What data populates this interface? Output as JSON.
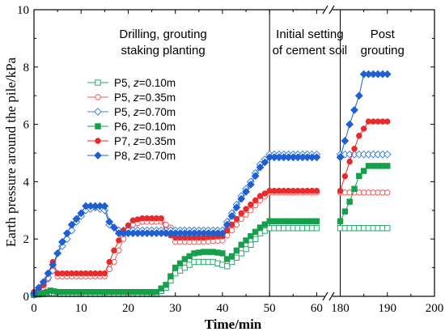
{
  "chart_data": {
    "type": "line",
    "xlabel": "Time/min",
    "ylabel": "Earth pressure around the pile/kPa",
    "ylim": [
      0,
      10
    ],
    "y_ticks": [
      "0",
      "2",
      "4",
      "6",
      "8",
      "10"
    ],
    "x_ticks": [
      "0",
      "10",
      "20",
      "30",
      "40",
      "50",
      "60",
      "180",
      "190",
      "200"
    ],
    "x_axis_break": [
      60,
      180
    ],
    "phase_dividers": [
      50,
      180
    ],
    "phase_labels": [
      {
        "lines": [
          "Drilling, grouting",
          "staking planting"
        ]
      },
      {
        "lines": [
          "Initial setting",
          "of cement soil"
        ]
      },
      {
        "lines": [
          "Post",
          "grouting"
        ]
      }
    ],
    "legend_position": "left",
    "series": [
      {
        "name": "P5, z=0.10m",
        "color": "#2aa56a",
        "marker": "square-open",
        "legend": {
          "var": "z",
          "rest": "=0.10m",
          "prefix": "P5, "
        },
        "points": [
          [
            0,
            0.05
          ],
          [
            2,
            0.08
          ],
          [
            3.5,
            0.12
          ],
          [
            5,
            0.1
          ],
          [
            5.5,
            0.08
          ],
          [
            10,
            0.08
          ],
          [
            15,
            0.08
          ],
          [
            20,
            0.08
          ],
          [
            26,
            0.08
          ],
          [
            28,
            0.3
          ],
          [
            30,
            0.8
          ],
          [
            32,
            1.0
          ],
          [
            34,
            1.2
          ],
          [
            36,
            1.2
          ],
          [
            38,
            1.2
          ],
          [
            40,
            1.1
          ],
          [
            41,
            1.05
          ],
          [
            42,
            1.2
          ],
          [
            44,
            1.5
          ],
          [
            46,
            1.8
          ],
          [
            48,
            2.2
          ],
          [
            50,
            2.38
          ],
          [
            52,
            2.38
          ],
          [
            60,
            2.38
          ],
          [
            180,
            2.38
          ],
          [
            190,
            2.38
          ]
        ]
      },
      {
        "name": "P5, z=0.35m",
        "color": "#f05a5a",
        "marker": "circle-open",
        "legend": {
          "var": "z",
          "rest": "=0.35m",
          "prefix": "P5, "
        },
        "points": [
          [
            0,
            0.1
          ],
          [
            2,
            0.3
          ],
          [
            3,
            0.6
          ],
          [
            4,
            0.9
          ],
          [
            5,
            0.7
          ],
          [
            6,
            0.7
          ],
          [
            10,
            0.7
          ],
          [
            15,
            0.7
          ],
          [
            17,
            1.2
          ],
          [
            19,
            2.0
          ],
          [
            21,
            2.5
          ],
          [
            23,
            2.6
          ],
          [
            25,
            2.6
          ],
          [
            27,
            2.6
          ],
          [
            29,
            2.4
          ],
          [
            30,
            1.9
          ],
          [
            32,
            1.9
          ],
          [
            36,
            1.9
          ],
          [
            40,
            1.95
          ],
          [
            42,
            2.3
          ],
          [
            44,
            2.7
          ],
          [
            46,
            3.0
          ],
          [
            48,
            3.35
          ],
          [
            50,
            3.62
          ],
          [
            52,
            3.62
          ],
          [
            60,
            3.62
          ],
          [
            180,
            3.62
          ],
          [
            190,
            3.62
          ]
        ]
      },
      {
        "name": "P5, z=0.70m",
        "color": "#3f7fe0",
        "marker": "diamond-open",
        "legend": {
          "var": "z",
          "rest": "=0.70m",
          "prefix": "P5, "
        },
        "points": [
          [
            0,
            0.05
          ],
          [
            2,
            0.4
          ],
          [
            4,
            0.9
          ],
          [
            5,
            1.5
          ],
          [
            7,
            2.0
          ],
          [
            9,
            2.6
          ],
          [
            11,
            3.0
          ],
          [
            13,
            3.1
          ],
          [
            15,
            3.0
          ],
          [
            16,
            2.5
          ],
          [
            18,
            2.3
          ],
          [
            20,
            2.3
          ],
          [
            25,
            2.3
          ],
          [
            30,
            2.3
          ],
          [
            35,
            2.3
          ],
          [
            40,
            2.3
          ],
          [
            42,
            2.9
          ],
          [
            44,
            3.5
          ],
          [
            46,
            4.0
          ],
          [
            48,
            4.6
          ],
          [
            50,
            4.95
          ],
          [
            52,
            4.95
          ],
          [
            60,
            4.95
          ],
          [
            180,
            4.95
          ],
          [
            190,
            4.95
          ]
        ]
      },
      {
        "name": "P6, z=0.10m",
        "color": "#15a04a",
        "marker": "square-filled",
        "legend": {
          "var": "z",
          "rest": "=0.10m",
          "prefix": "P6, "
        },
        "points": [
          [
            0,
            0.05
          ],
          [
            2,
            0.1
          ],
          [
            3.5,
            0.2
          ],
          [
            5,
            0.15
          ],
          [
            6,
            0.15
          ],
          [
            10,
            0.15
          ],
          [
            15,
            0.15
          ],
          [
            20,
            0.15
          ],
          [
            26,
            0.15
          ],
          [
            28,
            0.4
          ],
          [
            30,
            1.0
          ],
          [
            32,
            1.3
          ],
          [
            34,
            1.5
          ],
          [
            36,
            1.55
          ],
          [
            38,
            1.55
          ],
          [
            40,
            1.5
          ],
          [
            41,
            1.3
          ],
          [
            42,
            1.4
          ],
          [
            44,
            1.8
          ],
          [
            46,
            2.1
          ],
          [
            48,
            2.4
          ],
          [
            50,
            2.62
          ],
          [
            52,
            2.62
          ],
          [
            60,
            2.62
          ],
          [
            180,
            2.62
          ],
          [
            182,
            3.3
          ],
          [
            184,
            4.2
          ],
          [
            186,
            4.55
          ],
          [
            188,
            4.55
          ],
          [
            190,
            4.55
          ]
        ]
      },
      {
        "name": "P7, z=0.35m",
        "color": "#e82a2a",
        "marker": "circle-filled",
        "legend": {
          "var": "z",
          "rest": "=0.35m",
          "prefix": "P7, "
        },
        "points": [
          [
            0,
            0.15
          ],
          [
            2,
            0.4
          ],
          [
            3,
            0.8
          ],
          [
            4,
            1.2
          ],
          [
            5,
            0.8
          ],
          [
            6,
            0.8
          ],
          [
            10,
            0.8
          ],
          [
            15,
            0.8
          ],
          [
            17,
            1.6
          ],
          [
            19,
            2.3
          ],
          [
            21,
            2.65
          ],
          [
            23,
            2.72
          ],
          [
            25,
            2.72
          ],
          [
            27,
            2.72
          ],
          [
            28,
            2.2
          ],
          [
            30,
            2.05
          ],
          [
            32,
            2.05
          ],
          [
            36,
            2.05
          ],
          [
            40,
            2.1
          ],
          [
            42,
            2.5
          ],
          [
            44,
            2.9
          ],
          [
            46,
            3.2
          ],
          [
            48,
            3.5
          ],
          [
            50,
            3.68
          ],
          [
            52,
            3.68
          ],
          [
            60,
            3.68
          ],
          [
            180,
            3.68
          ],
          [
            182,
            4.7
          ],
          [
            184,
            5.6
          ],
          [
            186,
            6.1
          ],
          [
            188,
            6.1
          ],
          [
            190,
            6.1
          ]
        ]
      },
      {
        "name": "P8, z=0.70m",
        "color": "#1f5fd0",
        "marker": "diamond-filled",
        "legend": {
          "var": "z",
          "rest": "=0.70m",
          "prefix": "P8, "
        },
        "points": [
          [
            0,
            0.1
          ],
          [
            2,
            0.5
          ],
          [
            4,
            1.1
          ],
          [
            6,
            1.9
          ],
          [
            8,
            2.5
          ],
          [
            10,
            2.9
          ],
          [
            11,
            3.15
          ],
          [
            13,
            3.15
          ],
          [
            15,
            3.15
          ],
          [
            16,
            2.6
          ],
          [
            18,
            2.2
          ],
          [
            20,
            2.2
          ],
          [
            25,
            2.2
          ],
          [
            30,
            2.2
          ],
          [
            35,
            2.2
          ],
          [
            40,
            2.2
          ],
          [
            42,
            2.8
          ],
          [
            44,
            3.4
          ],
          [
            46,
            3.9
          ],
          [
            48,
            4.5
          ],
          [
            50,
            4.85
          ],
          [
            52,
            4.85
          ],
          [
            60,
            4.85
          ],
          [
            180,
            4.85
          ],
          [
            182,
            6.0
          ],
          [
            184,
            7.0
          ],
          [
            185,
            7.75
          ],
          [
            187,
            7.75
          ],
          [
            190,
            7.75
          ]
        ]
      }
    ]
  }
}
